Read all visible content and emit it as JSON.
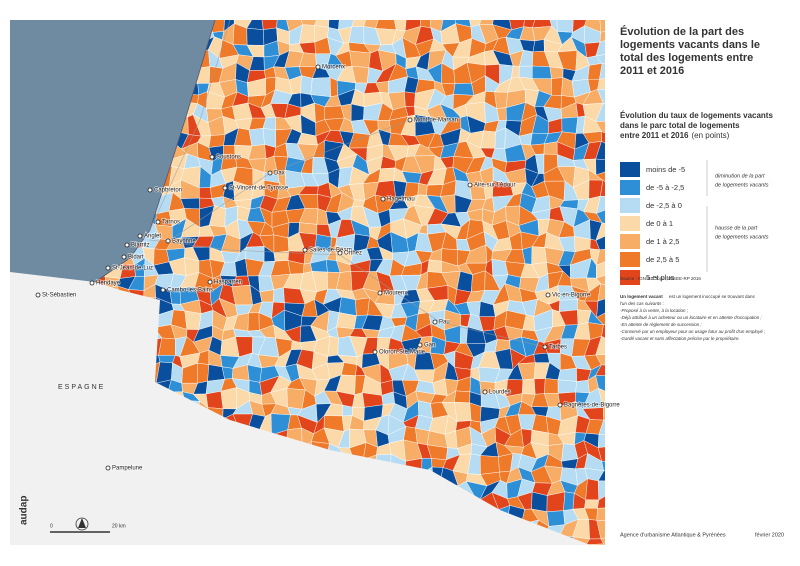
{
  "title": [
    "Évolution de la part des",
    "logements vacants dans le",
    "total des logements entre",
    "2011 et 2016"
  ],
  "legend": {
    "title": [
      "Évolution du taux de logements vacants",
      "dans le parc total de logements",
      "entre 2011 et 2016"
    ],
    "title_note": "(en points)",
    "classes": [
      {
        "label": "moins de -5",
        "color": "#0a4f9e"
      },
      {
        "label": "de -5 à -2,5",
        "color": "#2f8fd6"
      },
      {
        "label": "de -2,5 à 0",
        "color": "#b5dcf3"
      },
      {
        "label": "de 0 à 1",
        "color": "#fcd9a8"
      },
      {
        "label": "de 1 à 2,5",
        "color": "#f7ad66"
      },
      {
        "label": "de 2,5 à 5",
        "color": "#ef7a2a"
      },
      {
        "label": "5 et plus",
        "color": "#e2451c"
      }
    ],
    "groups": [
      [
        "diminution de la part",
        "de logements vacants"
      ],
      [
        "hausse de la part",
        "de logements vacants"
      ]
    ]
  },
  "source": "Source : IGN-BD Topo ; INSEE-RP 2016",
  "definition": {
    "lead": "Un logement vacant",
    "text": "est un logement inoccupé se trouvant dans",
    "text2": "l'un des cas suivants :",
    "items": [
      "-Proposé à la vente, à la location ;",
      "-Déjà attribué à un acheteur ou un locataire et en attente d'occupation ;",
      "-En attente de règlement de succession ;",
      "-Conservé par un employeur pour un usage futur au profit d'un employé ;",
      "-Gardé vacant et sans affectation précise par le propriétaire."
    ]
  },
  "footer": {
    "agency": "Agence d'urbanisme Atlantique & Pyrénées",
    "date": "février 2020",
    "logo": "audap"
  },
  "map": {
    "country_label": "ESPAGNE",
    "scale": {
      "zero": "0",
      "distance": "20 km"
    },
    "cities": [
      "Morcenx",
      "Mont-de-Marsan",
      "Soustons",
      "Dax",
      "St-Vincent-de-Tyrosse",
      "Hagetmau",
      "Aire-sur-l'Adour",
      "Capbreton",
      "Tarnos",
      "Anglet",
      "Biarritz",
      "Bayonne",
      "Salies-de-Béarn",
      "Orthez",
      "Bidart",
      "St-Jean-de-Luz",
      "Hendaye",
      "St-Sébastien",
      "Cambo-les-Bains",
      "Hasparren",
      "Mourenx",
      "Vic-en-Bigorre",
      "Pau",
      "Gan",
      "Oloron-Ste-Marie",
      "Tarbes",
      "Lourdes",
      "Bagnères-de-Bigorre",
      "Pampelune"
    ]
  }
}
